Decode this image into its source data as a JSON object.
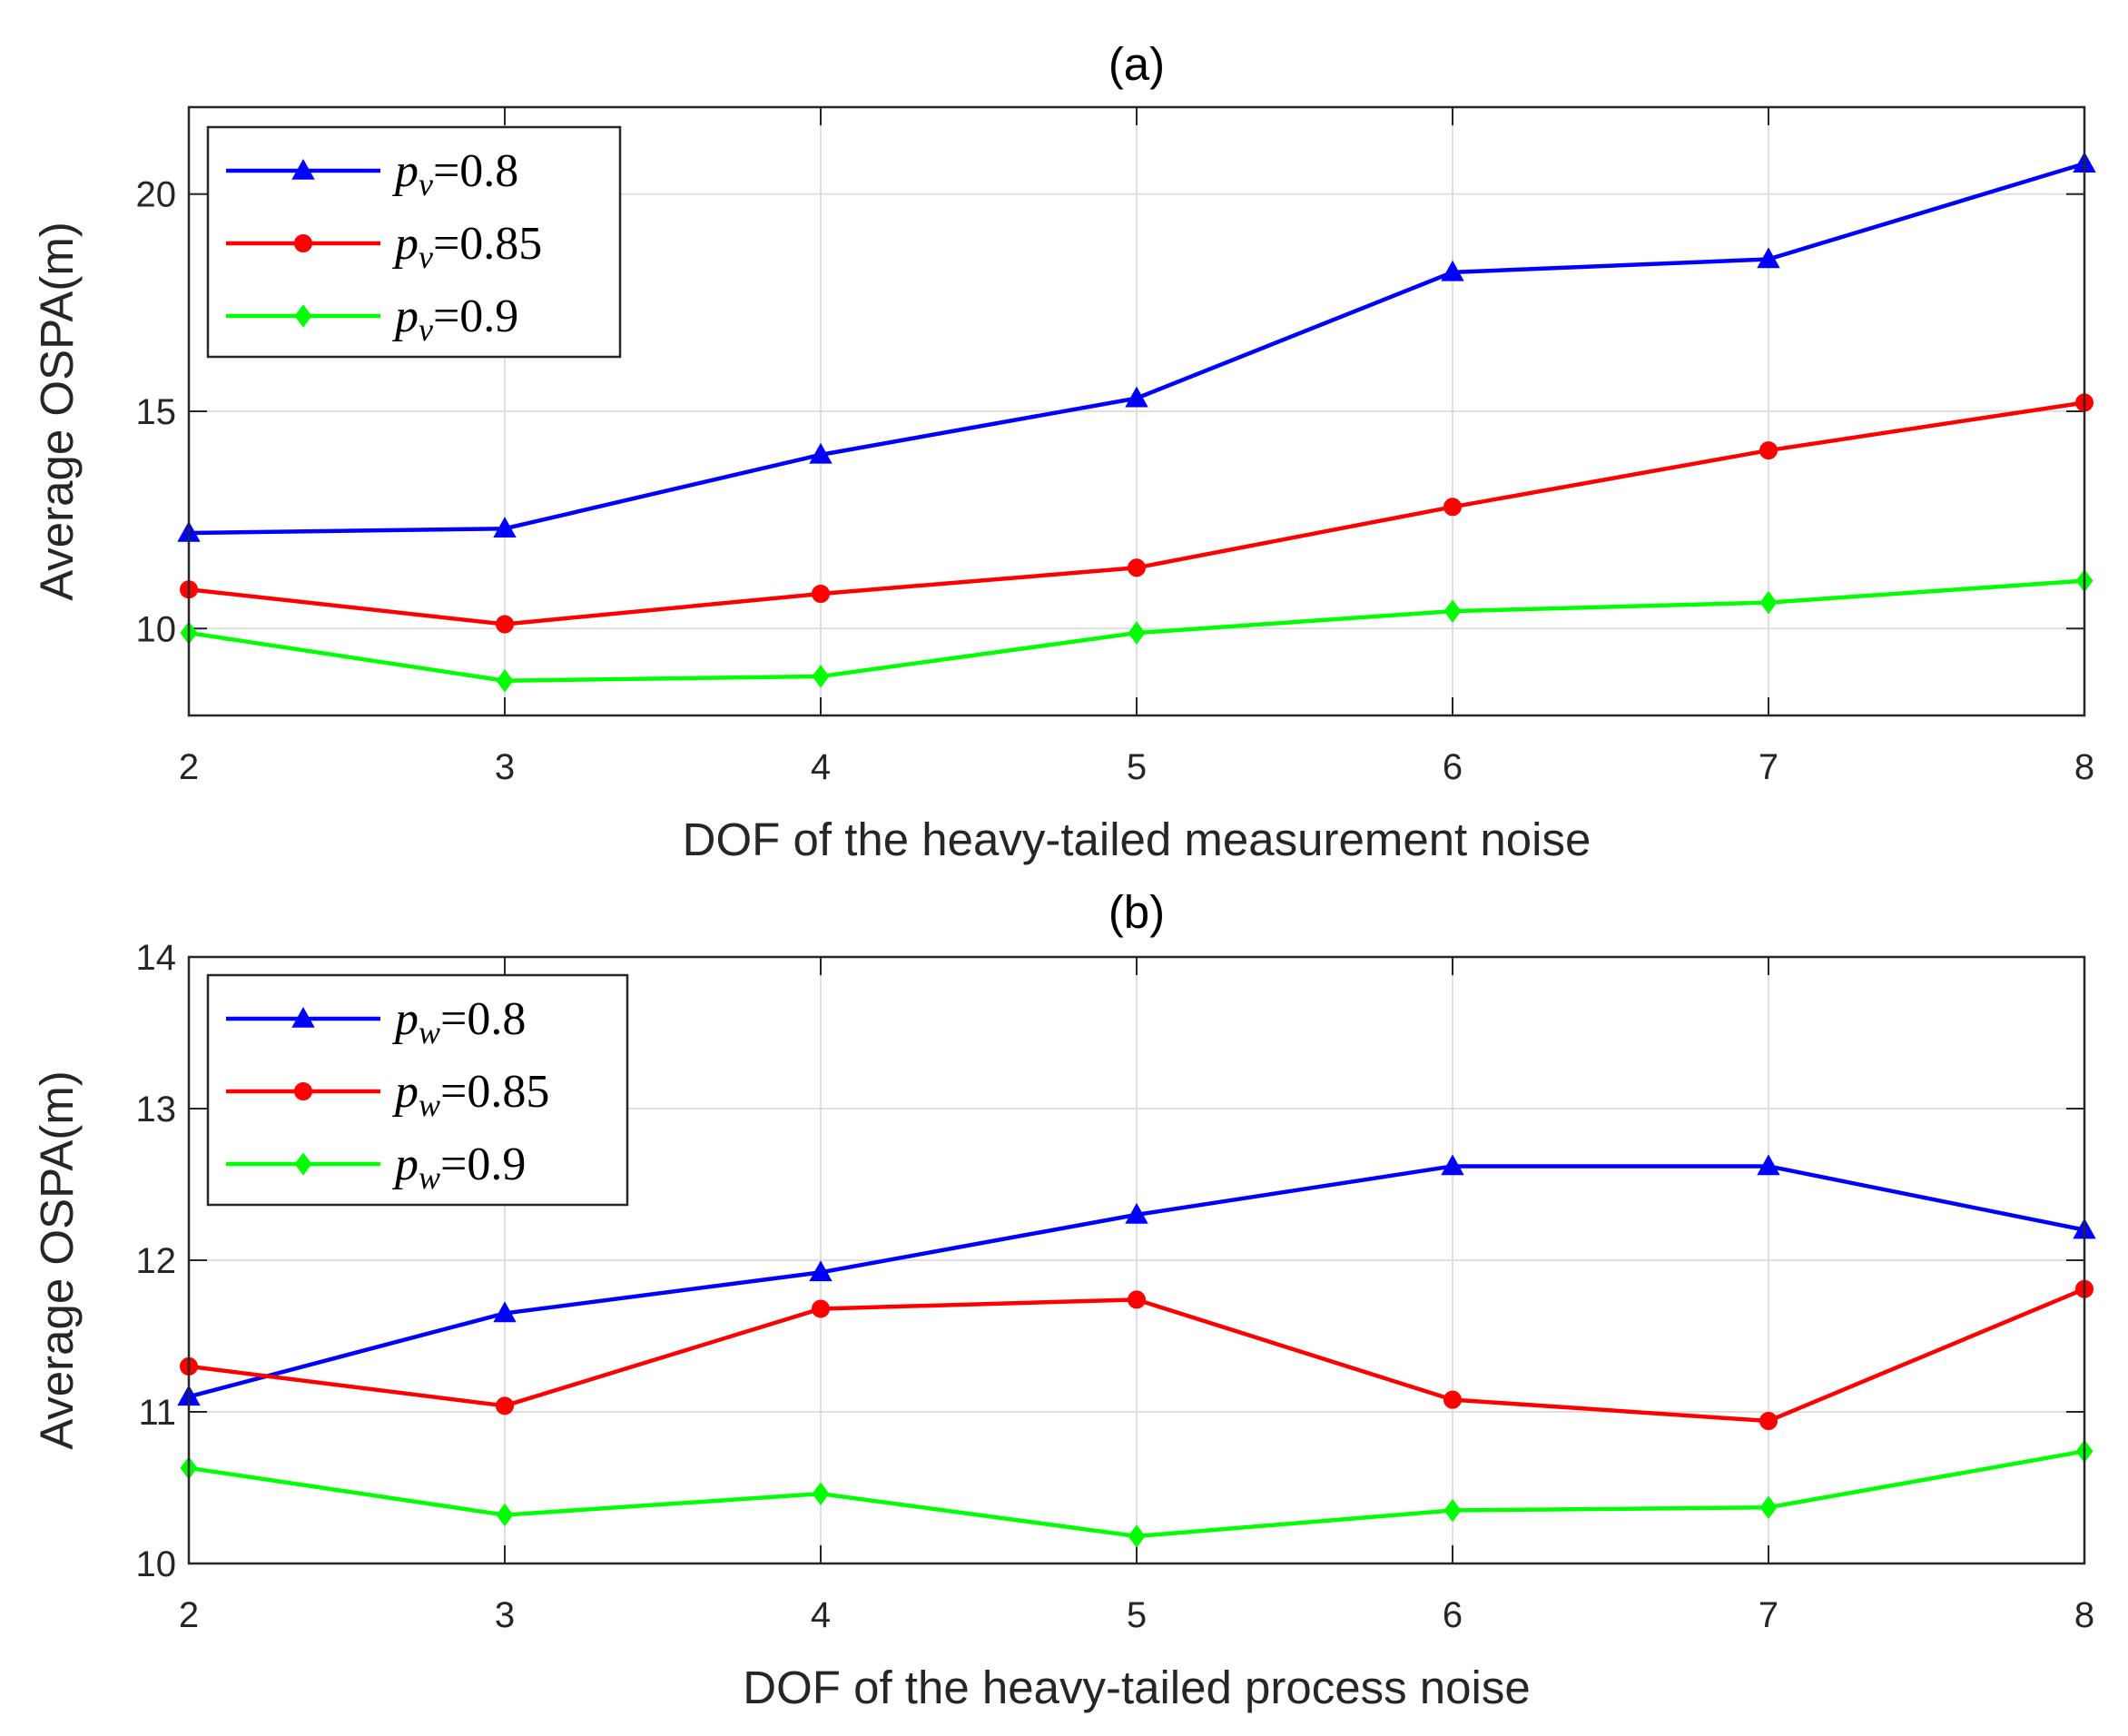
{
  "chart_data": [
    {
      "type": "line",
      "title": "(a)",
      "xlabel": "DOF of the heavy-tailed measurement noise",
      "ylabel": "Average OSPA(m)",
      "x": [
        2,
        3,
        4,
        5,
        6,
        7,
        8
      ],
      "xlim": [
        2,
        8
      ],
      "ylim": [
        8,
        22
      ],
      "xticks": [
        "2",
        "3",
        "4",
        "5",
        "6",
        "7",
        "8"
      ],
      "yticks": [
        10,
        15,
        20
      ],
      "ytick_labels": [
        "10",
        "15",
        "20"
      ],
      "grid": true,
      "legend_position": "top-left",
      "series": [
        {
          "name_var": "p",
          "name_sub": "v",
          "name_val": "=0.8",
          "color": "#0000ff",
          "marker": "triangle",
          "values": [
            12.2,
            12.3,
            14.0,
            15.3,
            18.2,
            18.5,
            20.7
          ]
        },
        {
          "name_var": "p",
          "name_sub": "v",
          "name_val": "=0.85",
          "color": "#ff0000",
          "marker": "circle",
          "values": [
            10.9,
            10.1,
            10.8,
            11.4,
            12.8,
            14.1,
            15.2
          ]
        },
        {
          "name_var": "p",
          "name_sub": "v",
          "name_val": "=0.9",
          "color": "#00ff00",
          "marker": "diamond",
          "values": [
            9.9,
            8.8,
            8.9,
            9.9,
            10.4,
            10.6,
            11.1
          ]
        }
      ]
    },
    {
      "type": "line",
      "title": "(b)",
      "xlabel": "DOF of the heavy-tailed process noise",
      "ylabel": "Average OSPA(m)",
      "x": [
        2,
        3,
        4,
        5,
        6,
        7,
        8
      ],
      "xlim": [
        2,
        8
      ],
      "ylim": [
        10,
        14
      ],
      "xticks": [
        "2",
        "3",
        "4",
        "5",
        "6",
        "7",
        "8"
      ],
      "yticks": [
        10,
        11,
        12,
        13,
        14
      ],
      "ytick_labels": [
        "10",
        "11",
        "12",
        "13",
        "14"
      ],
      "grid": true,
      "legend_position": "top-left",
      "series": [
        {
          "name_var": "p",
          "name_sub": "w",
          "name_val": "=0.8",
          "color": "#0000ff",
          "marker": "triangle",
          "values": [
            11.1,
            11.65,
            11.92,
            12.3,
            12.62,
            12.62,
            12.2
          ]
        },
        {
          "name_var": "p",
          "name_sub": "w",
          "name_val": "=0.85",
          "color": "#ff0000",
          "marker": "circle",
          "values": [
            11.3,
            11.04,
            11.68,
            11.74,
            11.08,
            10.94,
            11.81
          ]
        },
        {
          "name_var": "p",
          "name_sub": "w",
          "name_val": "=0.9",
          "color": "#00ff00",
          "marker": "diamond",
          "values": [
            10.63,
            10.32,
            10.46,
            10.18,
            10.35,
            10.37,
            10.74
          ]
        }
      ]
    }
  ]
}
